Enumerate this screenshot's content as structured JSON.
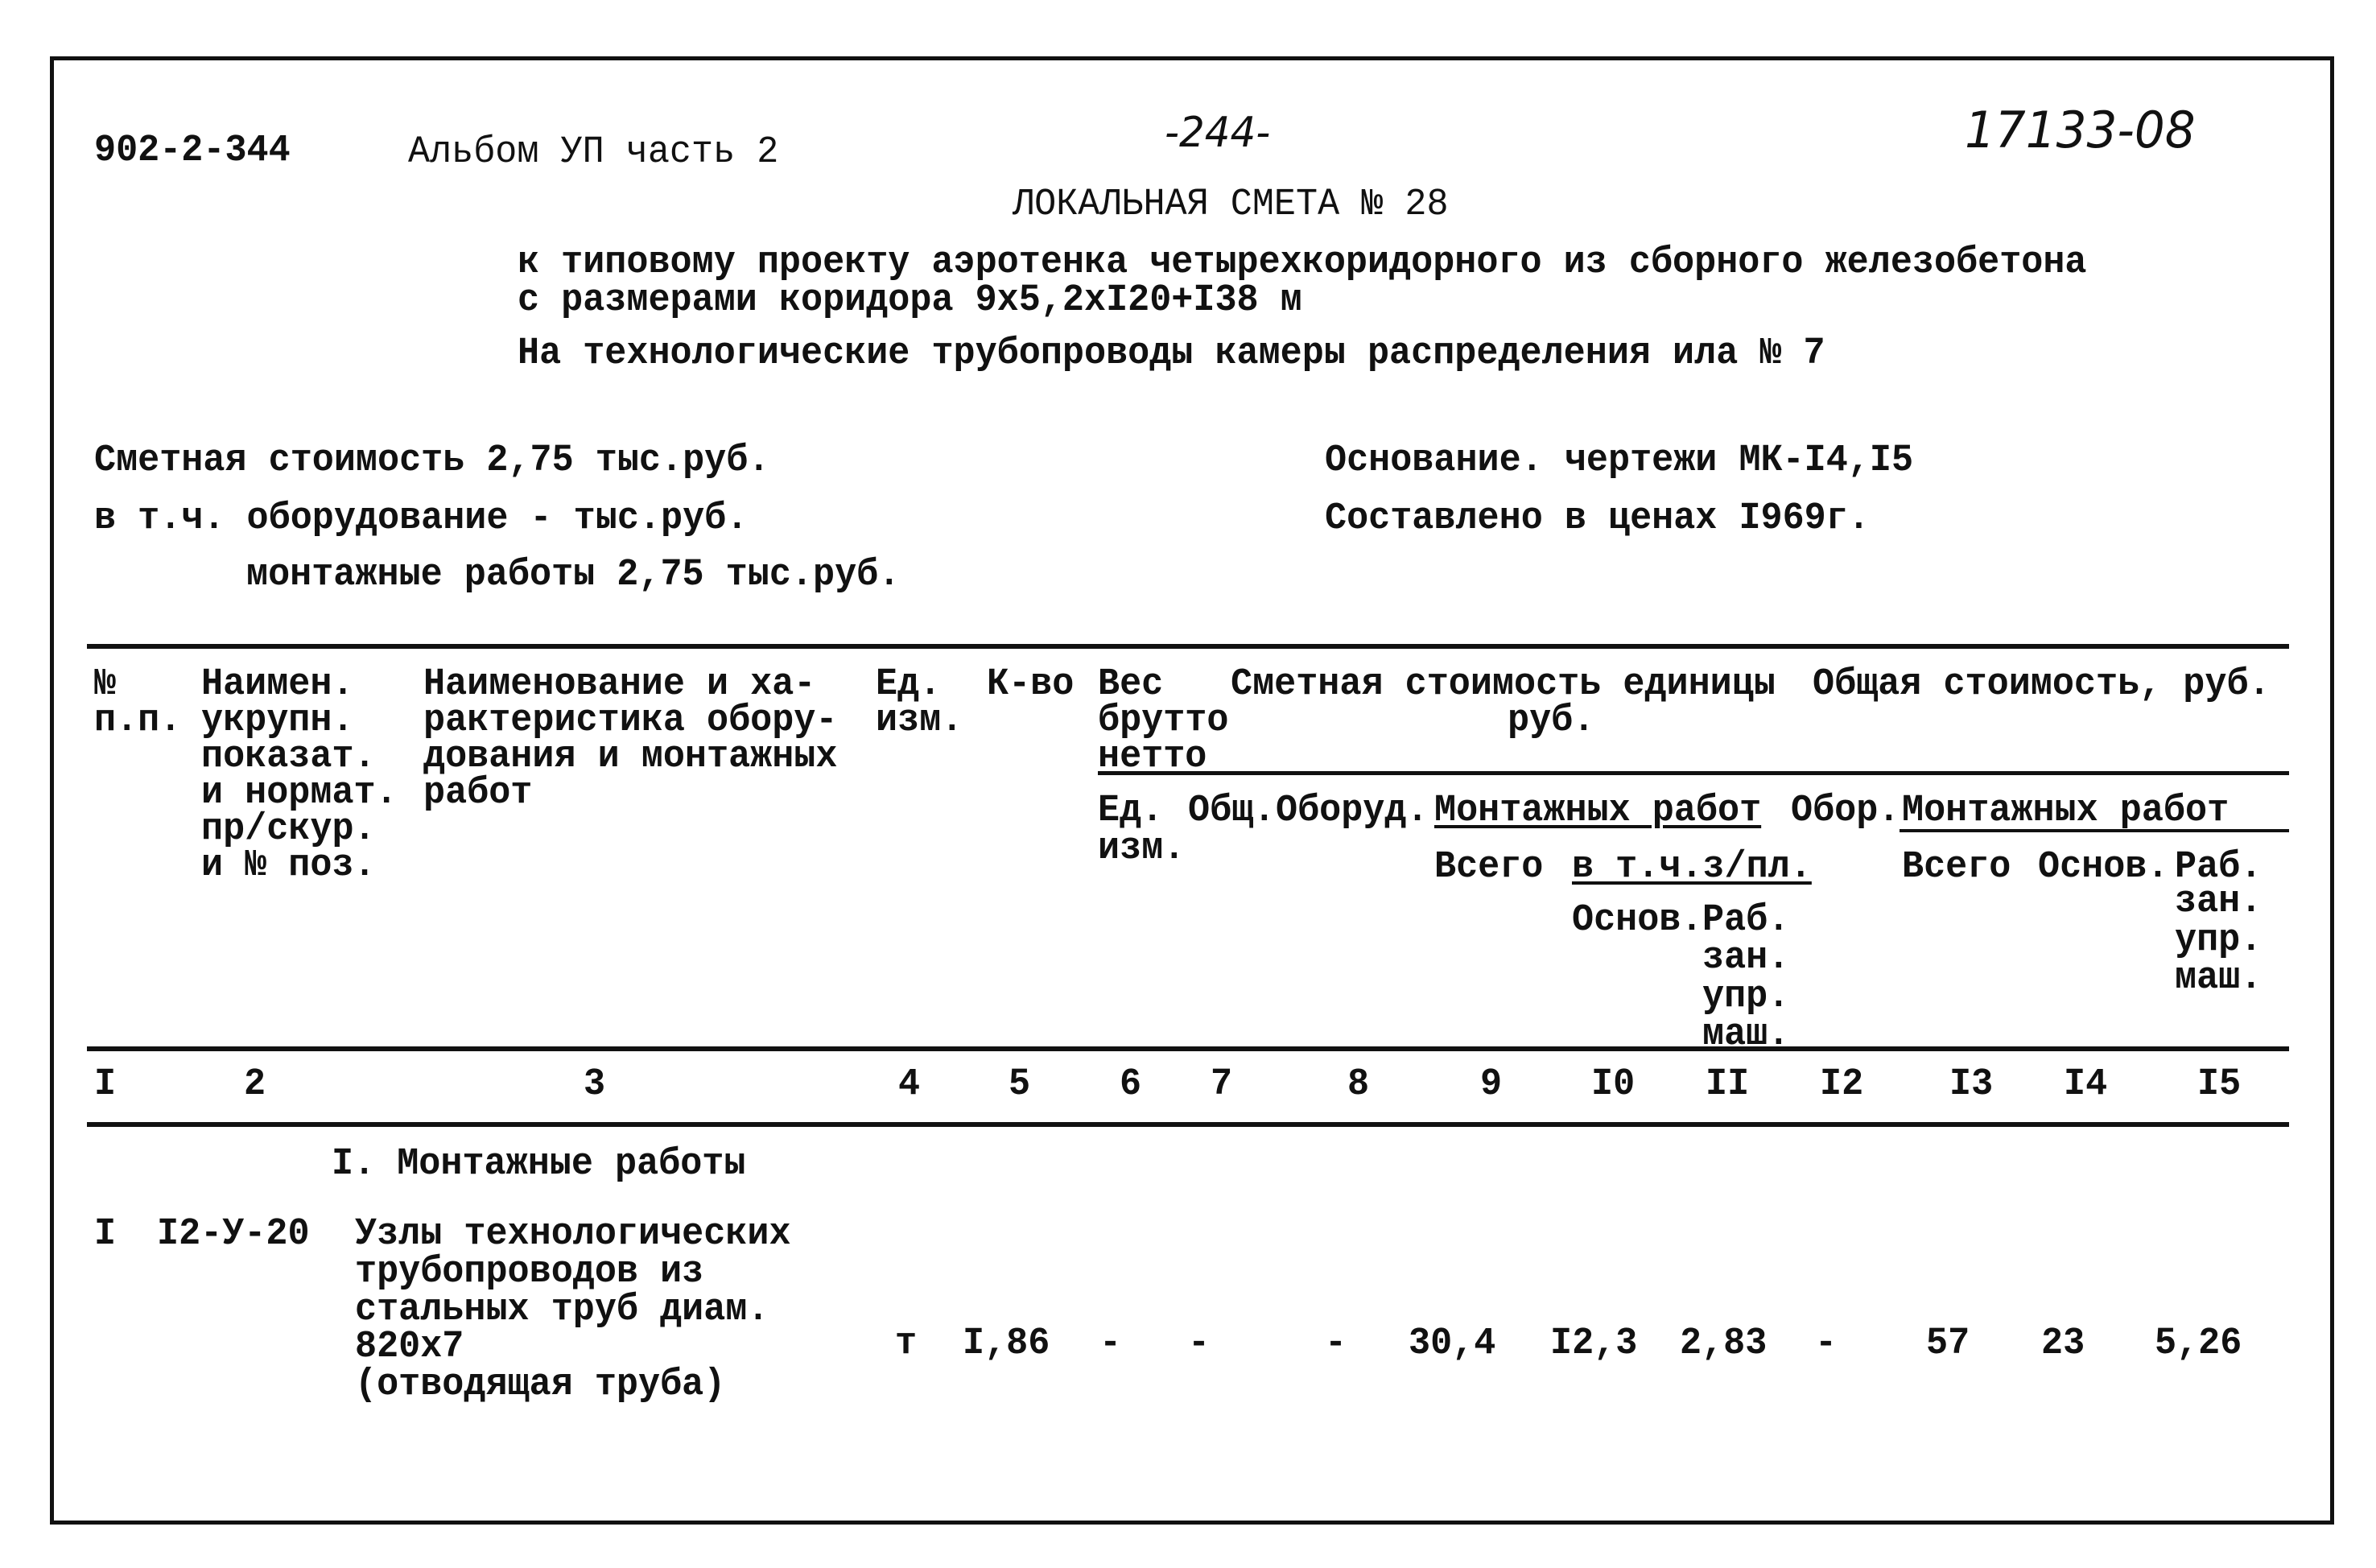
{
  "header": {
    "doc_code": "902-2-344",
    "album": "Альбом УП часть 2",
    "page": "-244-",
    "sheet_code": "17133-08",
    "title": "ЛОКАЛЬНАЯ СМЕТА № 28",
    "subtitle_1": "к типовому проекту аэротенка четырехкоридорного из сборного железобетона",
    "subtitle_2": "с размерами коридора 9х5,2хI20+I38 м",
    "subtitle_3": "На технологические трубопроводы камеры распределения ила № 7"
  },
  "summary": {
    "cost": "Сметная стоимость 2,75 тыс.руб.",
    "equipment": "в т.ч. оборудование - тыс.руб.",
    "installation": "монтажные работы 2,75 тыс.руб.",
    "basis": "Основание. чертежи МК-I4,I5",
    "prices": "Составлено в ценах I969г."
  },
  "table_header": {
    "col1": [
      "№",
      "п.п."
    ],
    "col2": [
      "Наимен.",
      "укрупн.",
      "показат.",
      "и нормат.",
      "пр/скур.",
      "и № поз."
    ],
    "col3": [
      "Наименование и ха-",
      "рактеристика обору-",
      "дования и монтажных",
      "работ"
    ],
    "col4": [
      "Ед.",
      "изм."
    ],
    "col5": "К-во",
    "col6": [
      "Вес",
      "брутто",
      "нетто"
    ],
    "unit_cost": [
      "Сметная стоимость единицы",
      "руб."
    ],
    "total_cost": "Общая стоимость, руб.",
    "weight_unit": [
      "Ед.",
      "изм."
    ],
    "weight_total": "Общ.",
    "equip": "Оборуд.",
    "install": "Монтажных работ",
    "equip2": "Обор.",
    "install2": "Монтажных работ",
    "total": "Всего",
    "incl_wages": "в т.ч.з/пл.",
    "total2": "Всего",
    "basic2": "Основ.",
    "mach2": [
      "Раб.",
      "зан.",
      "упр.",
      "маш."
    ],
    "basic": "Основ.",
    "mach": [
      "Раб.",
      "зан.",
      "упр.",
      "маш."
    ]
  },
  "column_numbers": [
    "I",
    "2",
    "3",
    "4",
    "5",
    "6",
    "7",
    "8",
    "9",
    "I0",
    "II",
    "I2",
    "I3",
    "I4",
    "I5"
  ],
  "section": "I. Монтажные работы",
  "rows": [
    {
      "num": "I",
      "code": "I2-У-20",
      "desc": [
        "Узлы технологических",
        "трубопроводов из",
        "стальных труб диам.",
        "820х7",
        "(отводящая труба)"
      ],
      "unit": "т",
      "qty": "I,86",
      "c6": "-",
      "c7": "-",
      "c8": "-",
      "c9": "30,4",
      "c10": "I2,3",
      "c11": "2,83",
      "c12": "-",
      "c13": "57",
      "c14": "23",
      "c15": "5,26"
    }
  ]
}
